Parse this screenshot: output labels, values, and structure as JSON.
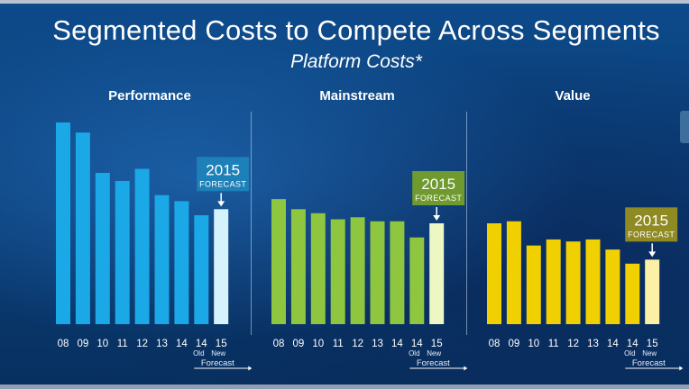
{
  "slide": {
    "title": "Segmented Costs to Compete Across Segments",
    "subtitle": "Platform Costs*"
  },
  "chart_data": [
    {
      "type": "bar",
      "title": "Performance",
      "categories": [
        "08",
        "09",
        "10",
        "11",
        "12",
        "13",
        "14",
        "14",
        "15"
      ],
      "sublabels": [
        "",
        "",
        "",
        "",
        "",
        "",
        "",
        "Old",
        "New"
      ],
      "values": [
        100,
        95,
        75,
        71,
        77,
        64,
        61,
        54,
        57
      ],
      "ylim": [
        0,
        100
      ],
      "color": "#1aa8e6",
      "forecast_color": "#d6f2fc",
      "callout": {
        "year": "2015",
        "label": "FORECAST",
        "color": "#1d80b8"
      },
      "axis_note": "Forecast"
    },
    {
      "type": "bar",
      "title": "Mainstream",
      "categories": [
        "08",
        "09",
        "10",
        "11",
        "12",
        "13",
        "14",
        "14",
        "15"
      ],
      "sublabels": [
        "",
        "",
        "",
        "",
        "",
        "",
        "",
        "Old",
        "New"
      ],
      "values": [
        62,
        57,
        55,
        52,
        53,
        51,
        51,
        43,
        50
      ],
      "ylim": [
        0,
        100
      ],
      "color": "#8ec63f",
      "forecast_color": "#edf7c4",
      "callout": {
        "year": "2015",
        "label": "FORECAST",
        "color": "#6e9a2e"
      },
      "axis_note": "Forecast"
    },
    {
      "type": "bar",
      "title": "Value",
      "categories": [
        "08",
        "09",
        "10",
        "11",
        "12",
        "13",
        "14",
        "14",
        "15"
      ],
      "sublabels": [
        "",
        "",
        "",
        "",
        "",
        "",
        "",
        "Old",
        "New"
      ],
      "values": [
        50,
        51,
        39,
        42,
        41,
        42,
        37,
        30,
        32
      ],
      "ylim": [
        0,
        100
      ],
      "color": "#f0d000",
      "forecast_color": "#fbf0a6",
      "callout": {
        "year": "2015",
        "label": "FORECAST",
        "color": "#8f8a22"
      },
      "axis_note": "Forecast"
    }
  ]
}
